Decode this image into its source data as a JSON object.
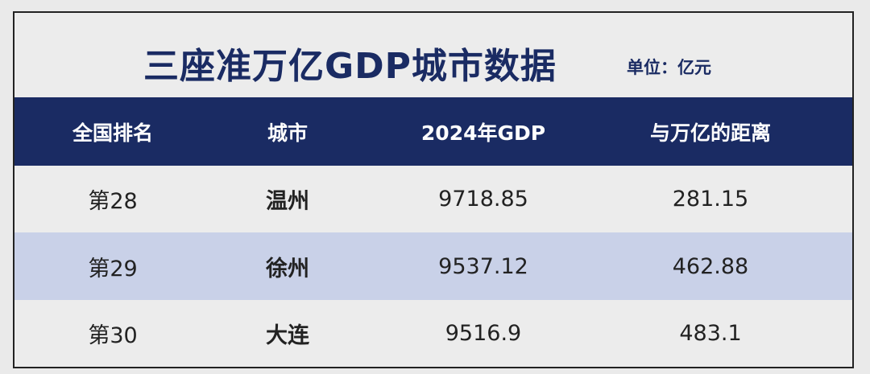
{
  "title": "三座准万亿GDP城市数据",
  "unit": "单位：亿元",
  "colors": {
    "header_bg": "#1a2b63",
    "alt_row_bg": "#c9d1e8",
    "title": "#1a2b63"
  },
  "columns": [
    "全国排名",
    "城市",
    "2024年GDP",
    "与万亿的距离"
  ],
  "rows": [
    [
      "第28",
      "温州",
      "9718.85",
      "281.15"
    ],
    [
      "第29",
      "徐州",
      "9537.12",
      "462.88"
    ],
    [
      "第30",
      "大连",
      "9516.9",
      "483.1"
    ]
  ]
}
